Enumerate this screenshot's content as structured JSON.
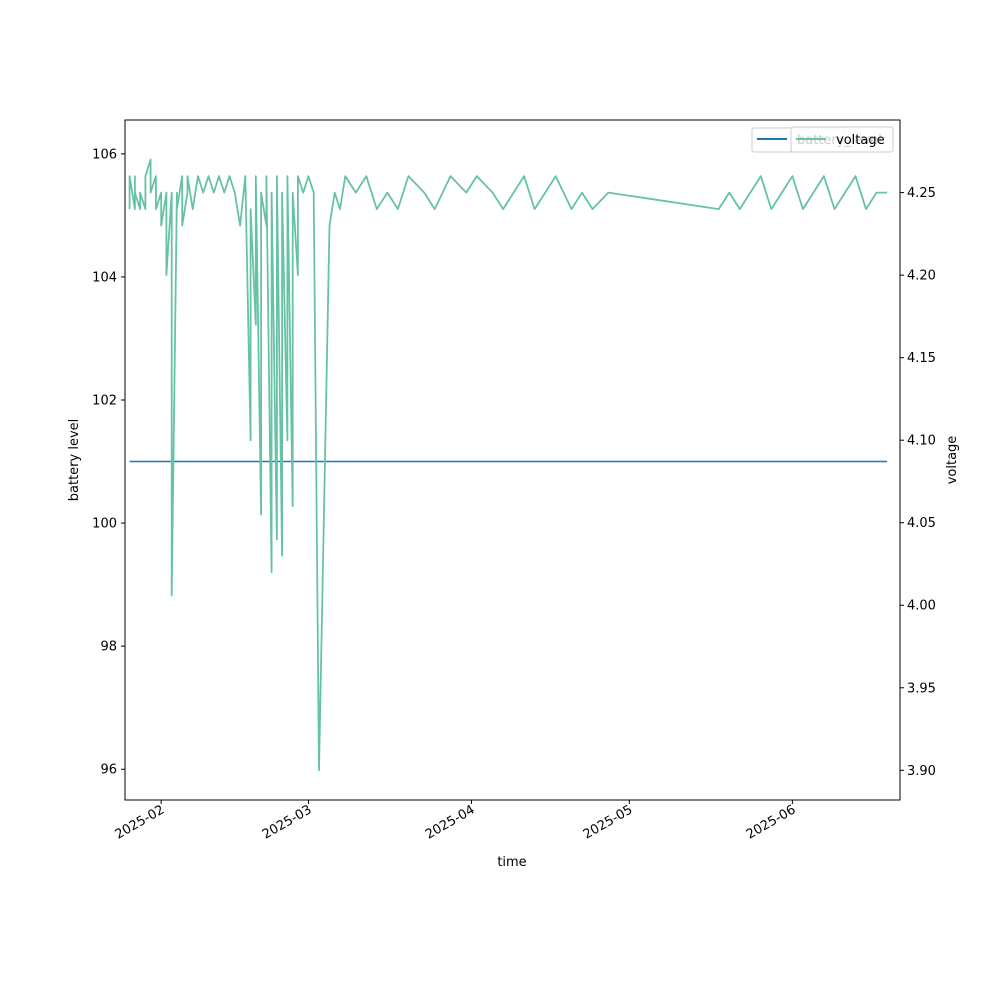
{
  "chart_data": {
    "type": "line",
    "title": "",
    "xlabel": "time",
    "ylabel_left": "battery level",
    "ylabel_right": "voltage",
    "x_range": [
      "2025-01-25T03:00",
      "2025-06-21T11:00"
    ],
    "x_ticks": [
      "2025-02-01",
      "2025-03-01",
      "2025-04-01",
      "2025-05-01",
      "2025-06-01"
    ],
    "x_tick_labels": [
      "2025-02",
      "2025-03",
      "2025-04",
      "2025-05",
      "2025-06"
    ],
    "ylim_left": [
      95.5,
      106.55
    ],
    "ylim_right": [
      3.882,
      4.294
    ],
    "y_ticks_left": [
      96,
      98,
      100,
      102,
      104,
      106
    ],
    "y_ticks_right": [
      3.9,
      3.95,
      4.0,
      4.05,
      4.1,
      4.15,
      4.2,
      4.25
    ],
    "y_tick_labels_left": [
      "96",
      "98",
      "100",
      "102",
      "104",
      "106"
    ],
    "y_tick_labels_right": [
      "3.90",
      "3.95",
      "4.00",
      "4.05",
      "4.10",
      "4.15",
      "4.20",
      "4.25"
    ],
    "grid": false,
    "legend_placement": "top-right",
    "legend_entries": [
      "battery_level",
      "voltage"
    ],
    "series": [
      {
        "name": "battery_level",
        "axis": "left",
        "color": "#1f77b4",
        "x": [
          "2025-01-26",
          "2025-06-19"
        ],
        "y": [
          101,
          101
        ]
      },
      {
        "name": "voltage",
        "axis": "right",
        "color": "#66c2a5",
        "x": [
          "2025-01-26",
          "2025-01-26",
          "2025-01-27",
          "2025-01-27",
          "2025-01-27",
          "2025-01-28",
          "2025-01-28",
          "2025-01-29",
          "2025-01-29",
          "2025-01-30",
          "2025-01-30",
          "2025-01-31",
          "2025-01-31",
          "2025-02-01",
          "2025-02-01",
          "2025-02-02",
          "2025-02-02",
          "2025-02-03",
          "2025-02-03",
          "2025-02-04",
          "2025-02-04",
          "2025-02-05",
          "2025-02-05",
          "2025-02-06",
          "2025-02-06",
          "2025-02-07",
          "2025-02-08",
          "2025-02-09",
          "2025-02-10",
          "2025-02-11",
          "2025-02-12",
          "2025-02-13",
          "2025-02-14",
          "2025-02-15",
          "2025-02-16",
          "2025-02-17",
          "2025-02-18",
          "2025-02-18",
          "2025-02-19",
          "2025-02-19",
          "2025-02-20",
          "2025-02-20",
          "2025-02-21",
          "2025-02-21",
          "2025-02-22",
          "2025-02-22",
          "2025-02-23",
          "2025-02-23",
          "2025-02-24",
          "2025-02-24",
          "2025-02-25",
          "2025-02-25",
          "2025-02-26",
          "2025-02-26",
          "2025-02-27",
          "2025-02-27",
          "2025-02-28",
          "2025-03-01",
          "2025-03-02",
          "2025-03-03",
          "2025-03-05",
          "2025-03-06",
          "2025-03-07",
          "2025-03-08",
          "2025-03-10",
          "2025-03-12",
          "2025-03-14",
          "2025-03-16",
          "2025-03-18",
          "2025-03-20",
          "2025-03-23",
          "2025-03-25",
          "2025-03-28",
          "2025-03-31",
          "2025-04-02",
          "2025-04-05",
          "2025-04-07",
          "2025-04-09",
          "2025-04-11",
          "2025-04-13",
          "2025-04-15",
          "2025-04-17",
          "2025-04-20",
          "2025-04-22",
          "2025-04-24",
          "2025-04-27",
          "2025-05-18",
          "2025-05-20",
          "2025-05-22",
          "2025-05-24",
          "2025-05-26",
          "2025-05-28",
          "2025-05-30",
          "2025-06-01",
          "2025-06-03",
          "2025-06-05",
          "2025-06-07",
          "2025-06-09",
          "2025-06-11",
          "2025-06-13",
          "2025-06-15",
          "2025-06-17",
          "2025-06-19"
        ],
        "y": [
          4.24,
          4.26,
          4.24,
          4.26,
          4.25,
          4.24,
          4.25,
          4.24,
          4.26,
          4.27,
          4.25,
          4.26,
          4.24,
          4.25,
          4.23,
          4.25,
          4.2,
          4.25,
          4.006,
          4.25,
          4.24,
          4.26,
          4.23,
          4.25,
          4.26,
          4.24,
          4.26,
          4.25,
          4.26,
          4.25,
          4.26,
          4.25,
          4.26,
          4.25,
          4.23,
          4.26,
          4.1,
          4.24,
          4.17,
          4.26,
          4.055,
          4.25,
          4.23,
          4.26,
          4.02,
          4.25,
          4.04,
          4.26,
          4.03,
          4.25,
          4.1,
          4.26,
          4.06,
          4.25,
          4.2,
          4.26,
          4.25,
          4.26,
          4.25,
          3.9,
          4.23,
          4.25,
          4.24,
          4.26,
          4.25,
          4.26,
          4.24,
          4.25,
          4.24,
          4.26,
          4.25,
          4.24,
          4.26,
          4.25,
          4.26,
          4.25,
          4.24,
          4.25,
          4.26,
          4.24,
          4.25,
          4.26,
          4.24,
          4.25,
          4.24,
          4.25,
          4.24,
          4.25,
          4.24,
          4.25,
          4.26,
          4.24,
          4.25,
          4.26,
          4.24,
          4.25,
          4.26,
          4.24,
          4.25,
          4.26,
          4.24,
          4.25,
          4.25
        ]
      }
    ]
  }
}
